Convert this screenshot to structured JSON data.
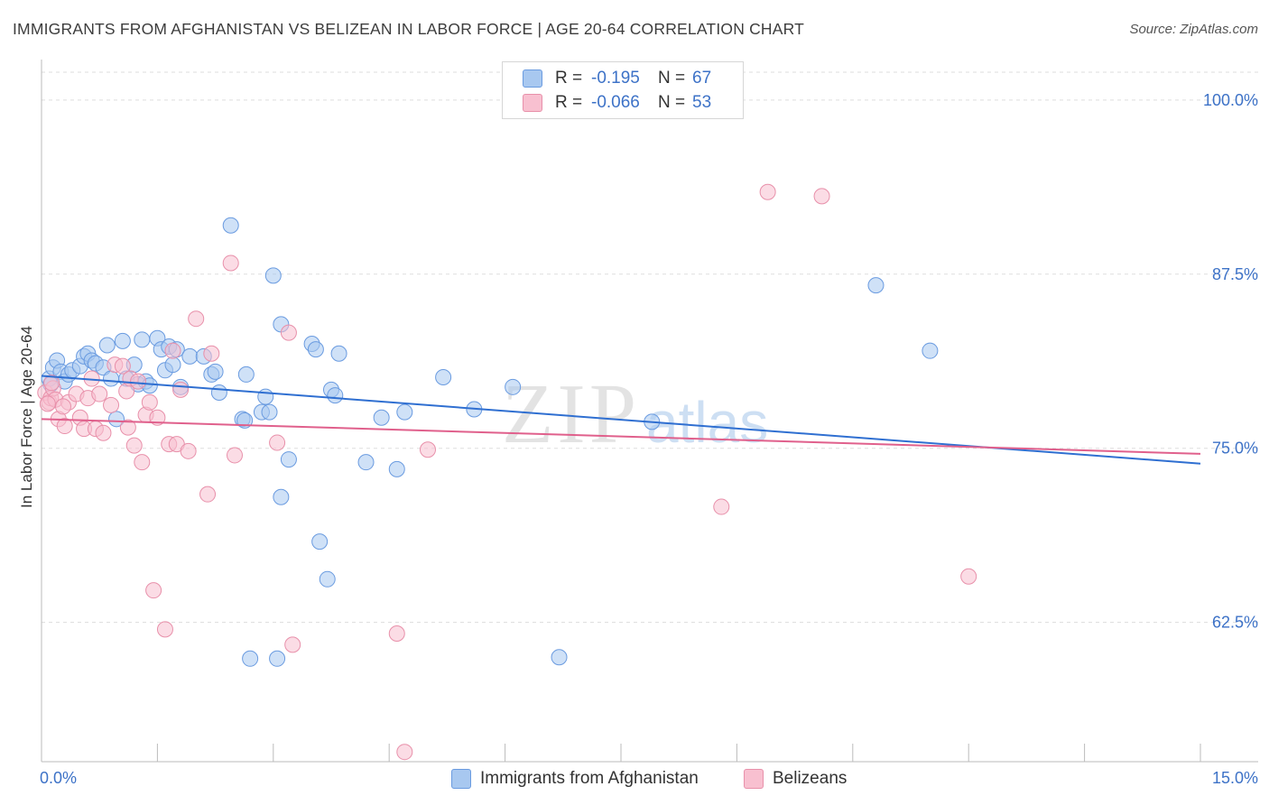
{
  "title": "IMMIGRANTS FROM AFGHANISTAN VS BELIZEAN IN LABOR FORCE | AGE 20-64 CORRELATION CHART",
  "source": "Source: ZipAtlas.com",
  "watermark": {
    "zip": "ZIP",
    "atlas": "atlas"
  },
  "legend": {
    "rows": [
      {
        "r_label": "R =",
        "r_value": "-0.195",
        "n_label": "N =",
        "n_value": "67",
        "color": "#a8c8f0",
        "border": "#6a9be0"
      },
      {
        "r_label": "R =",
        "r_value": "-0.066",
        "n_label": "N =",
        "n_value": "53",
        "color": "#f8c0d0",
        "border": "#e890aa"
      }
    ]
  },
  "bottom_legend": [
    {
      "label": "Immigrants from Afghanistan",
      "color": "#a8c8f0",
      "border": "#6a9be0"
    },
    {
      "label": "Belizeans",
      "color": "#f8c0d0",
      "border": "#e890aa"
    }
  ],
  "chart_data": {
    "type": "scatter",
    "title": "IMMIGRANTS FROM AFGHANISTAN VS BELIZEAN IN LABOR FORCE | AGE 20-64 CORRELATION CHART",
    "xlabel": "",
    "ylabel": "In Labor Force | Age 20-64",
    "xlim": [
      0,
      15
    ],
    "ylim": [
      52.5,
      102
    ],
    "x_tick_labels": [
      "0.0%",
      "15.0%"
    ],
    "y_ticks": [
      62.5,
      75.0,
      87.5,
      100.0
    ],
    "y_tick_labels": [
      "62.5%",
      "75.0%",
      "87.5%",
      "100.0%"
    ],
    "grid": true,
    "series": [
      {
        "name": "Immigrants from Afghanistan",
        "color": "#6a9be0",
        "fill": "#a8c8f0",
        "line_color": "#2f6fd1",
        "trend": {
          "x": [
            0,
            15
          ],
          "y": [
            80.2,
            73.9
          ]
        },
        "points": [
          [
            0.1,
            80.0
          ],
          [
            0.12,
            79.6
          ],
          [
            0.15,
            80.8
          ],
          [
            0.2,
            81.3
          ],
          [
            0.25,
            80.5
          ],
          [
            0.3,
            79.8
          ],
          [
            0.35,
            80.3
          ],
          [
            0.4,
            80.6
          ],
          [
            0.5,
            80.9
          ],
          [
            0.55,
            81.6
          ],
          [
            0.6,
            81.8
          ],
          [
            0.65,
            81.3
          ],
          [
            0.7,
            81.1
          ],
          [
            0.8,
            80.8
          ],
          [
            0.85,
            82.4
          ],
          [
            0.9,
            80.0
          ],
          [
            0.97,
            77.1
          ],
          [
            1.05,
            82.7
          ],
          [
            1.1,
            80.0
          ],
          [
            1.2,
            81.0
          ],
          [
            1.25,
            79.6
          ],
          [
            1.3,
            82.8
          ],
          [
            1.35,
            79.8
          ],
          [
            1.4,
            79.5
          ],
          [
            1.5,
            82.9
          ],
          [
            1.55,
            82.1
          ],
          [
            1.6,
            80.6
          ],
          [
            1.65,
            82.3
          ],
          [
            1.7,
            81.0
          ],
          [
            1.75,
            82.1
          ],
          [
            1.8,
            79.4
          ],
          [
            1.92,
            81.6
          ],
          [
            2.1,
            81.6
          ],
          [
            2.2,
            80.3
          ],
          [
            2.25,
            80.5
          ],
          [
            2.3,
            79.0
          ],
          [
            2.45,
            91.0
          ],
          [
            2.6,
            77.1
          ],
          [
            2.63,
            77.0
          ],
          [
            2.65,
            80.3
          ],
          [
            2.85,
            77.6
          ],
          [
            2.9,
            78.7
          ],
          [
            2.95,
            77.6
          ],
          [
            3.0,
            87.4
          ],
          [
            3.1,
            71.5
          ],
          [
            3.1,
            83.9
          ],
          [
            3.2,
            74.2
          ],
          [
            3.5,
            82.5
          ],
          [
            3.55,
            82.1
          ],
          [
            3.6,
            68.3
          ],
          [
            3.7,
            65.6
          ],
          [
            3.75,
            79.2
          ],
          [
            3.8,
            78.8
          ],
          [
            3.85,
            81.8
          ],
          [
            4.2,
            74.0
          ],
          [
            4.4,
            77.2
          ],
          [
            4.6,
            73.5
          ],
          [
            4.7,
            77.6
          ],
          [
            5.2,
            80.1
          ],
          [
            5.6,
            77.8
          ],
          [
            6.1,
            79.4
          ],
          [
            6.7,
            60.0
          ],
          [
            7.9,
            76.9
          ],
          [
            10.8,
            86.7
          ],
          [
            11.5,
            82.0
          ],
          [
            3.05,
            59.9
          ],
          [
            2.7,
            59.9
          ]
        ]
      },
      {
        "name": "Belizeans",
        "color": "#e890aa",
        "fill": "#f8c0d0",
        "line_color": "#e0608c",
        "trend": {
          "x": [
            0,
            15
          ],
          "y": [
            77.1,
            74.6
          ]
        },
        "points": [
          [
            0.05,
            79.0
          ],
          [
            0.1,
            78.3
          ],
          [
            0.12,
            78.6
          ],
          [
            0.15,
            79.3
          ],
          [
            0.18,
            78.5
          ],
          [
            0.22,
            77.1
          ],
          [
            0.3,
            76.6
          ],
          [
            0.35,
            78.3
          ],
          [
            0.45,
            78.9
          ],
          [
            0.5,
            77.2
          ],
          [
            0.55,
            76.4
          ],
          [
            0.6,
            78.6
          ],
          [
            0.65,
            80.0
          ],
          [
            0.7,
            76.4
          ],
          [
            0.75,
            78.9
          ],
          [
            0.8,
            76.1
          ],
          [
            0.9,
            78.1
          ],
          [
            0.95,
            81.0
          ],
          [
            1.05,
            80.9
          ],
          [
            1.1,
            79.1
          ],
          [
            1.15,
            80.0
          ],
          [
            1.2,
            75.2
          ],
          [
            1.25,
            79.8
          ],
          [
            1.3,
            74.0
          ],
          [
            1.35,
            77.4
          ],
          [
            1.4,
            78.3
          ],
          [
            1.45,
            64.8
          ],
          [
            1.5,
            77.2
          ],
          [
            1.6,
            62.0
          ],
          [
            1.65,
            75.3
          ],
          [
            1.7,
            82.0
          ],
          [
            1.75,
            75.3
          ],
          [
            1.8,
            79.2
          ],
          [
            1.9,
            74.8
          ],
          [
            2.0,
            84.3
          ],
          [
            2.15,
            71.7
          ],
          [
            2.2,
            81.8
          ],
          [
            2.45,
            88.3
          ],
          [
            2.5,
            74.5
          ],
          [
            3.05,
            75.4
          ],
          [
            3.2,
            83.3
          ],
          [
            3.25,
            60.9
          ],
          [
            4.6,
            61.7
          ],
          [
            4.7,
            53.2
          ],
          [
            5.0,
            74.9
          ],
          [
            8.8,
            70.8
          ],
          [
            9.4,
            93.4
          ],
          [
            10.1,
            93.1
          ],
          [
            12.0,
            65.8
          ],
          [
            0.08,
            78.2
          ],
          [
            0.13,
            79.7
          ],
          [
            0.28,
            78.0
          ],
          [
            1.12,
            76.5
          ]
        ]
      }
    ]
  }
}
